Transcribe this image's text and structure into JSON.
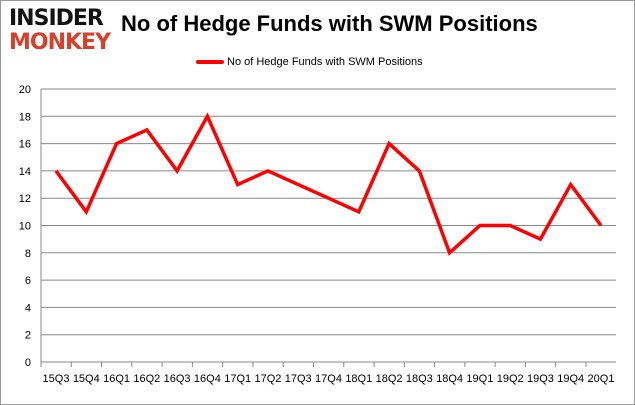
{
  "logo": {
    "line1": "INSIDER",
    "line2": "MONKEY"
  },
  "chart_data": {
    "type": "line",
    "title": "No of Hedge Funds with SWM Positions",
    "categories": [
      "15Q3",
      "15Q4",
      "16Q1",
      "16Q2",
      "16Q3",
      "16Q4",
      "17Q1",
      "17Q2",
      "17Q3",
      "17Q4",
      "18Q1",
      "18Q2",
      "18Q3",
      "18Q4",
      "19Q1",
      "19Q2",
      "19Q3",
      "19Q4",
      "20Q1"
    ],
    "series": [
      {
        "name": "No of Hedge Funds with SWM Positions",
        "values": [
          14,
          11,
          16,
          17,
          14,
          18,
          13,
          14,
          13,
          12,
          11,
          16,
          14,
          8,
          10,
          10,
          9,
          13,
          10
        ],
        "color": "#ff0000"
      }
    ],
    "ylim": [
      0,
      20
    ],
    "yticks": [
      0,
      2,
      4,
      6,
      8,
      10,
      12,
      14,
      16,
      18,
      20
    ],
    "grid": true,
    "legend": "top-center"
  }
}
